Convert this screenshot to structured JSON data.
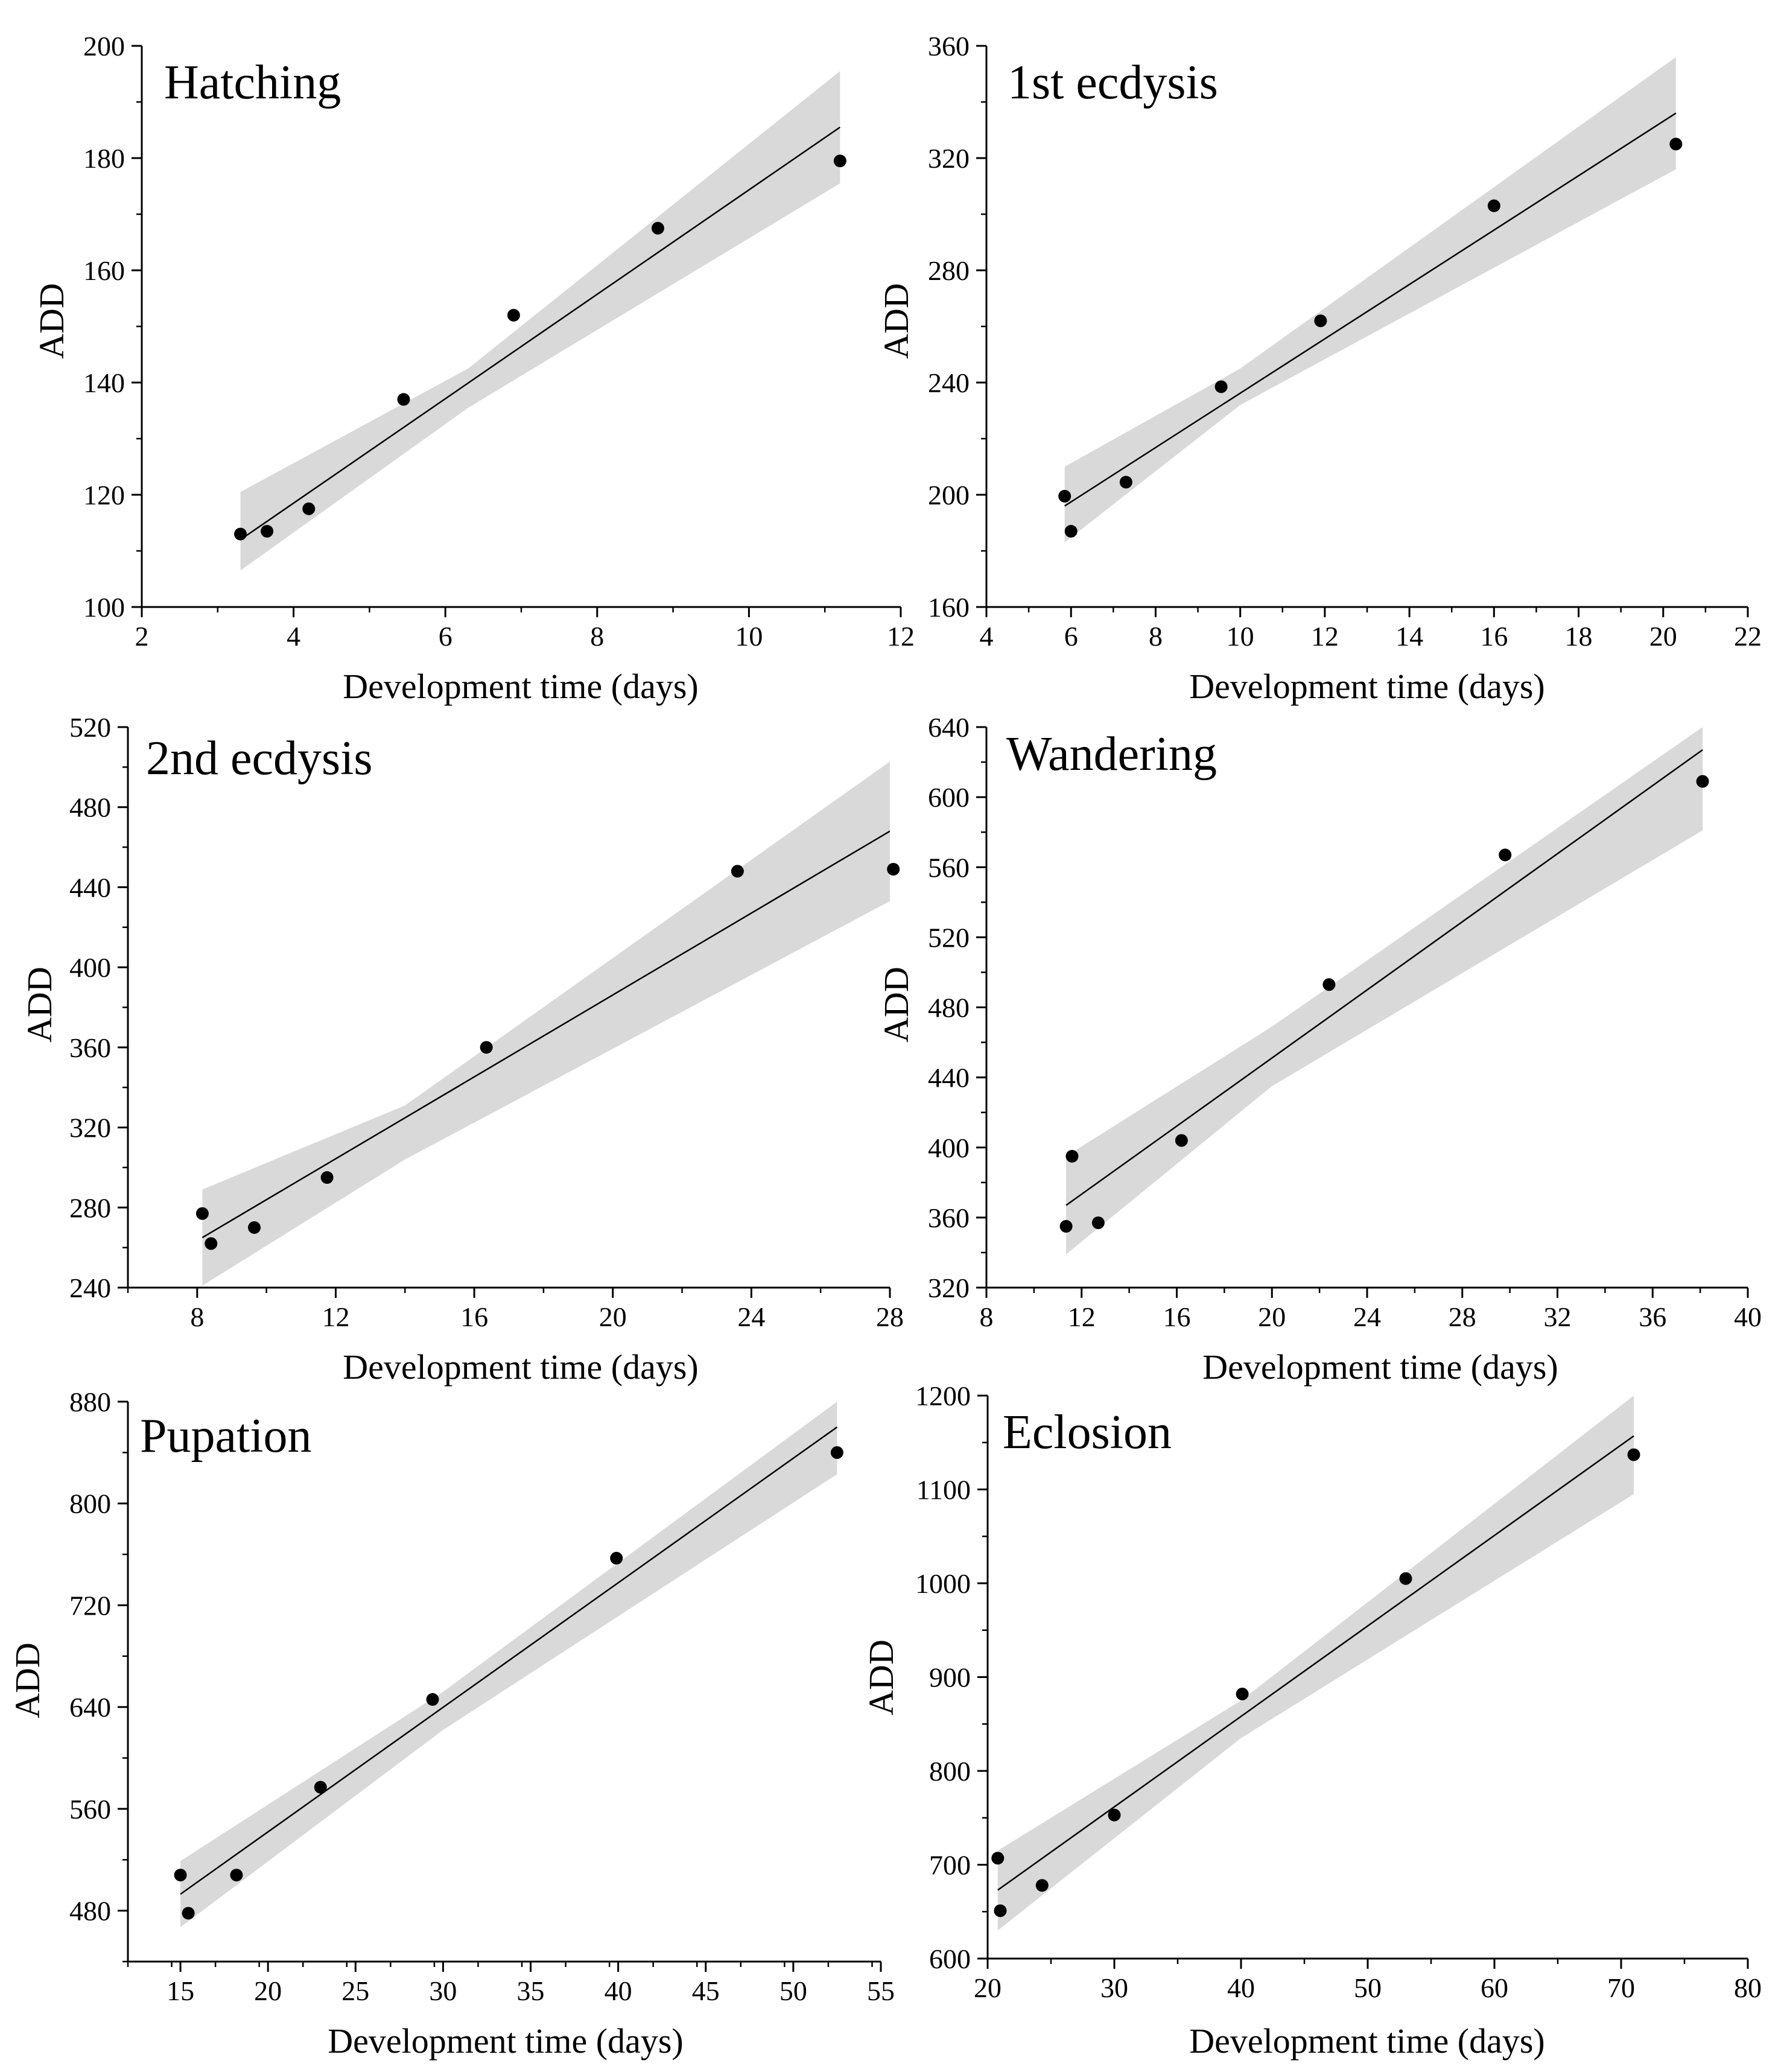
{
  "colors": {
    "band": "#d9d9d9",
    "line": "#000000",
    "point": "#000000",
    "axis": "#000000"
  },
  "chart_data": [
    {
      "type": "scatter",
      "title": "Hatching",
      "xlabel": "Development time (days)",
      "ylabel": "ADD",
      "xlim": [
        2,
        12
      ],
      "ylim": [
        100,
        200
      ],
      "xticks": [
        2,
        4,
        6,
        8,
        10,
        12
      ],
      "yticks": [
        100,
        120,
        140,
        160,
        180,
        200
      ],
      "x_minor_step": 1,
      "y_minor_step": 10,
      "x_tick_labels": [
        "2",
        "4",
        "6",
        "8",
        "10",
        "12"
      ],
      "y_tick_labels": [
        "100",
        "120",
        "140",
        "160",
        "180",
        "200"
      ],
      "points": {
        "x": [
          3.3,
          3.65,
          4.2,
          5.45,
          6.9,
          8.8,
          11.2
        ],
        "y": [
          113,
          113.5,
          117.5,
          137,
          152,
          167.5,
          179.5
        ]
      },
      "fit_line": {
        "x": [
          3.3,
          11.2
        ],
        "y": [
          112,
          185.5
        ]
      },
      "confidence_band": {
        "x": [
          3.3,
          6.3,
          11.2
        ],
        "upper": [
          120.5,
          142.5,
          195.5
        ],
        "lower": [
          106.5,
          135.5,
          175.5
        ]
      }
    },
    {
      "type": "scatter",
      "title": "1st ecdysis",
      "xlabel": "Development time (days)",
      "ylabel": "ADD",
      "xlim": [
        4,
        22
      ],
      "ylim": [
        160,
        360
      ],
      "xticks": [
        4,
        6,
        8,
        10,
        12,
        14,
        16,
        18,
        20,
        22
      ],
      "yticks": [
        160,
        200,
        240,
        280,
        320,
        360
      ],
      "x_minor_step": 1,
      "y_minor_step": 20,
      "x_tick_labels": [
        "4",
        "6",
        "8",
        "10",
        "12",
        "14",
        "16",
        "18",
        "20",
        "22"
      ],
      "y_tick_labels": [
        "160",
        "200",
        "240",
        "280",
        "320",
        "360"
      ],
      "points": {
        "x": [
          5.85,
          6.0,
          7.3,
          9.55,
          11.9,
          16.0,
          20.3
        ],
        "y": [
          199.5,
          187,
          204.5,
          238.5,
          262,
          303,
          325
        ]
      },
      "fit_line": {
        "x": [
          5.85,
          20.3
        ],
        "y": [
          196,
          336
        ]
      },
      "confidence_band": {
        "x": [
          5.85,
          10.0,
          20.3
        ],
        "upper": [
          210,
          245,
          356
        ],
        "lower": [
          183,
          232,
          316
        ]
      }
    },
    {
      "type": "scatter",
      "title": "2nd ecdysis",
      "xlabel": "Development time (days)",
      "ylabel": "ADD",
      "xlim": [
        6,
        28
      ],
      "ylim": [
        240,
        520
      ],
      "xticks": [
        8,
        12,
        16,
        20,
        24,
        28
      ],
      "yticks": [
        240,
        280,
        320,
        360,
        400,
        440,
        480,
        520
      ],
      "x_minor_step": 2,
      "y_minor_step": 20,
      "x_tick_labels": [
        "8",
        "12",
        "16",
        "20",
        "24",
        "28"
      ],
      "y_tick_labels": [
        "240",
        "280",
        "320",
        "360",
        "400",
        "440",
        "480",
        "520"
      ],
      "points": {
        "x": [
          8.15,
          8.4,
          9.65,
          11.75,
          16.35,
          23.6,
          28.1
        ],
        "y": [
          277,
          262,
          270,
          295,
          360,
          448,
          449
        ]
      },
      "fit_line": {
        "x": [
          8.15,
          28.1
        ],
        "y": [
          265,
          469
        ]
      },
      "confidence_band": {
        "x": [
          8.15,
          14.0,
          28.1
        ],
        "upper": [
          289,
          331,
          504
        ],
        "lower": [
          241,
          304,
          434
        ]
      }
    },
    {
      "type": "scatter",
      "title": "Wandering",
      "xlabel": "Development time (days)",
      "ylabel": "ADD",
      "xlim": [
        8,
        40
      ],
      "ylim": [
        320,
        640
      ],
      "xticks": [
        8,
        12,
        16,
        20,
        24,
        28,
        32,
        36,
        40
      ],
      "yticks": [
        320,
        360,
        400,
        440,
        480,
        520,
        560,
        600,
        640
      ],
      "x_minor_step": 2,
      "y_minor_step": 20,
      "x_tick_labels": [
        "8",
        "12",
        "16",
        "20",
        "24",
        "28",
        "32",
        "36",
        "40"
      ],
      "y_tick_labels": [
        "320",
        "360",
        "400",
        "440",
        "480",
        "520",
        "560",
        "600",
        "640"
      ],
      "points": {
        "x": [
          11.35,
          11.6,
          12.7,
          16.2,
          22.4,
          29.8,
          38.1
        ],
        "y": [
          355,
          395,
          357,
          404,
          493,
          567,
          609
        ]
      },
      "fit_line": {
        "x": [
          11.35,
          38.1
        ],
        "y": [
          367,
          627
        ]
      },
      "confidence_band": {
        "x": [
          11.35,
          20.0,
          38.1
        ],
        "upper": [
          395,
          469,
          640
        ],
        "lower": [
          339,
          435,
          581
        ]
      }
    },
    {
      "type": "scatter",
      "title": "Pupation",
      "xlabel": "Development time (days)",
      "ylabel": "ADD",
      "xlim": [
        12,
        55
      ],
      "ylim": [
        440,
        880
      ],
      "xticks": [
        15,
        20,
        25,
        30,
        35,
        40,
        45,
        50,
        55
      ],
      "yticks": [
        480,
        560,
        640,
        720,
        800,
        880
      ],
      "x_minor_step": 2.5,
      "y_minor_step": 40,
      "x_tick_labels": [
        "15",
        "20",
        "25",
        "30",
        "35",
        "40",
        "45",
        "50",
        "55"
      ],
      "y_tick_labels": [
        "480",
        "560",
        "640",
        "720",
        "800",
        "880"
      ],
      "points": {
        "x": [
          15.0,
          15.45,
          18.2,
          23.0,
          29.4,
          39.9,
          52.5
        ],
        "y": [
          508,
          478,
          508,
          577,
          646,
          757,
          840
        ]
      },
      "fit_line": {
        "x": [
          15.0,
          52.5
        ],
        "y": [
          493,
          860
        ]
      },
      "confidence_band": {
        "x": [
          15.0,
          30.0,
          52.5
        ],
        "upper": [
          519,
          652,
          880
        ],
        "lower": [
          467,
          622,
          823
        ]
      }
    },
    {
      "type": "scatter",
      "title": "Eclosion",
      "xlabel": "Development time (days)",
      "ylabel": "ADD",
      "xlim": [
        20,
        80
      ],
      "ylim": [
        600,
        1200
      ],
      "xticks": [
        20,
        30,
        40,
        50,
        60,
        70,
        80
      ],
      "yticks": [
        600,
        700,
        800,
        900,
        1000,
        1100,
        1200
      ],
      "x_minor_step": 5,
      "y_minor_step": 50,
      "x_tick_labels": [
        "20",
        "30",
        "40",
        "50",
        "60",
        "70",
        "80"
      ],
      "y_tick_labels": [
        "600",
        "700",
        "800",
        "900",
        "1000",
        "1100",
        "1200"
      ],
      "points": {
        "x": [
          20.8,
          21.0,
          24.3,
          30.0,
          40.1,
          53.0,
          71.0
        ],
        "y": [
          707,
          651,
          678,
          753,
          882,
          1005,
          1137
        ]
      },
      "fit_line": {
        "x": [
          20.8,
          71.0
        ],
        "y": [
          673,
          1157
        ]
      },
      "confidence_band": {
        "x": [
          20.8,
          40.0,
          71.0
        ],
        "upper": [
          715,
          875,
          1200
        ],
        "lower": [
          630,
          835,
          1095
        ]
      }
    }
  ]
}
